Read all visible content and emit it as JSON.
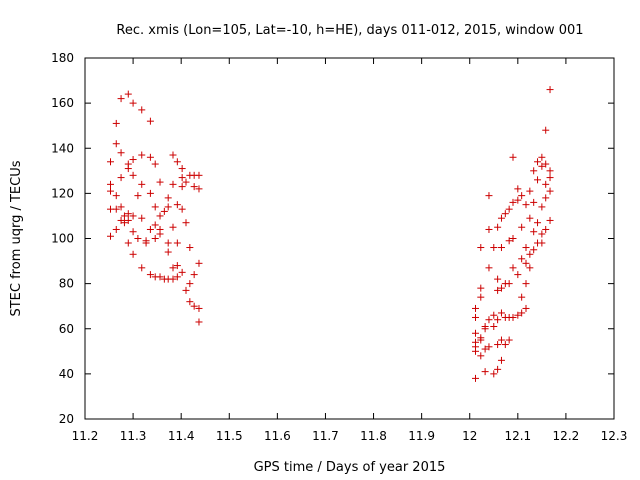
{
  "chart_data": {
    "type": "scatter",
    "title": "Rec. xmis (Lon=105, Lat=-10, h=HE), days 011-012, 2015, window 001",
    "xlabel": "GPS time / Days of year 2015",
    "ylabel": "STEC from uqrg / TECUs",
    "xlim": [
      11.2,
      12.3
    ],
    "ylim": [
      20,
      180
    ],
    "xticks": [
      "11.2",
      "11.3",
      "11.4",
      "11.5",
      "11.6",
      "11.7",
      "11.8",
      "11.9",
      "12",
      "12.1",
      "12.2",
      "12.3"
    ],
    "xtick_values": [
      11.2,
      11.3,
      11.4,
      11.5,
      11.6,
      11.7,
      11.8,
      11.9,
      12.0,
      12.1,
      12.2,
      12.3
    ],
    "yticks": [
      "20",
      "40",
      "60",
      "80",
      "100",
      "120",
      "140",
      "160",
      "180"
    ],
    "ytick_values": [
      20,
      40,
      60,
      80,
      100,
      120,
      140,
      160,
      180
    ],
    "marker": "+",
    "marker_color": "#cc0000",
    "grid": false,
    "series": [
      {
        "points": [
          [
            11.253,
            134
          ],
          [
            11.253,
            124
          ],
          [
            11.253,
            121
          ],
          [
            11.253,
            113
          ],
          [
            11.253,
            101
          ],
          [
            11.265,
            151
          ],
          [
            11.265,
            142
          ],
          [
            11.265,
            119
          ],
          [
            11.265,
            113
          ],
          [
            11.265,
            104
          ],
          [
            11.275,
            162
          ],
          [
            11.275,
            138
          ],
          [
            11.275,
            127
          ],
          [
            11.275,
            114
          ],
          [
            11.275,
            108
          ],
          [
            11.282,
            110
          ],
          [
            11.282,
            107
          ],
          [
            11.29,
            164
          ],
          [
            11.29,
            133
          ],
          [
            11.29,
            131
          ],
          [
            11.29,
            111
          ],
          [
            11.29,
            108
          ],
          [
            11.29,
            98
          ],
          [
            11.3,
            160
          ],
          [
            11.3,
            135
          ],
          [
            11.3,
            128
          ],
          [
            11.3,
            110
          ],
          [
            11.3,
            103
          ],
          [
            11.3,
            93
          ],
          [
            11.31,
            119
          ],
          [
            11.31,
            100
          ],
          [
            11.318,
            157
          ],
          [
            11.318,
            137
          ],
          [
            11.318,
            124
          ],
          [
            11.318,
            109
          ],
          [
            11.318,
            87
          ],
          [
            11.327,
            99
          ],
          [
            11.327,
            98
          ],
          [
            11.336,
            152
          ],
          [
            11.336,
            136
          ],
          [
            11.336,
            120
          ],
          [
            11.336,
            104
          ],
          [
            11.336,
            84
          ],
          [
            11.346,
            133
          ],
          [
            11.346,
            114
          ],
          [
            11.346,
            106
          ],
          [
            11.346,
            100
          ],
          [
            11.346,
            83
          ],
          [
            11.356,
            125
          ],
          [
            11.356,
            110
          ],
          [
            11.356,
            104
          ],
          [
            11.356,
            102
          ],
          [
            11.356,
            83
          ],
          [
            11.365,
            112
          ],
          [
            11.365,
            82
          ],
          [
            11.373,
            118
          ],
          [
            11.373,
            114
          ],
          [
            11.373,
            98
          ],
          [
            11.373,
            94
          ],
          [
            11.373,
            82
          ],
          [
            11.383,
            137
          ],
          [
            11.383,
            124
          ],
          [
            11.383,
            105
          ],
          [
            11.383,
            87
          ],
          [
            11.383,
            82
          ],
          [
            11.392,
            134
          ],
          [
            11.392,
            115
          ],
          [
            11.392,
            98
          ],
          [
            11.392,
            88
          ],
          [
            11.392,
            83
          ],
          [
            11.402,
            131
          ],
          [
            11.402,
            127
          ],
          [
            11.402,
            123
          ],
          [
            11.402,
            113
          ],
          [
            11.402,
            85
          ],
          [
            11.41,
            125
          ],
          [
            11.41,
            107
          ],
          [
            11.41,
            77
          ],
          [
            11.418,
            128
          ],
          [
            11.418,
            96
          ],
          [
            11.418,
            80
          ],
          [
            11.418,
            72
          ],
          [
            11.427,
            128
          ],
          [
            11.427,
            123
          ],
          [
            11.427,
            84
          ],
          [
            11.427,
            70
          ],
          [
            11.437,
            128
          ],
          [
            11.437,
            122
          ],
          [
            11.437,
            89
          ],
          [
            11.437,
            69
          ],
          [
            11.437,
            63
          ]
        ]
      },
      {
        "points": [
          [
            12.012,
            69
          ],
          [
            12.012,
            65
          ],
          [
            12.012,
            58
          ],
          [
            12.012,
            54
          ],
          [
            12.012,
            52
          ],
          [
            12.012,
            50
          ],
          [
            12.012,
            38
          ],
          [
            12.023,
            96
          ],
          [
            12.023,
            78
          ],
          [
            12.023,
            74
          ],
          [
            12.023,
            56
          ],
          [
            12.023,
            55
          ],
          [
            12.023,
            48
          ],
          [
            12.032,
            61
          ],
          [
            12.032,
            60
          ],
          [
            12.032,
            51
          ],
          [
            12.032,
            41
          ],
          [
            12.04,
            119
          ],
          [
            12.04,
            104
          ],
          [
            12.04,
            87
          ],
          [
            12.04,
            64
          ],
          [
            12.04,
            52
          ],
          [
            12.05,
            96
          ],
          [
            12.05,
            66
          ],
          [
            12.05,
            61
          ],
          [
            12.05,
            40
          ],
          [
            12.058,
            105
          ],
          [
            12.058,
            82
          ],
          [
            12.058,
            77
          ],
          [
            12.058,
            64
          ],
          [
            12.058,
            53
          ],
          [
            12.058,
            42
          ],
          [
            12.066,
            109
          ],
          [
            12.066,
            96
          ],
          [
            12.066,
            78
          ],
          [
            12.066,
            67
          ],
          [
            12.066,
            55
          ],
          [
            12.066,
            46
          ],
          [
            12.074,
            111
          ],
          [
            12.074,
            80
          ],
          [
            12.074,
            65
          ],
          [
            12.074,
            53
          ],
          [
            12.082,
            113
          ],
          [
            12.082,
            99
          ],
          [
            12.082,
            80
          ],
          [
            12.082,
            65
          ],
          [
            12.082,
            55
          ],
          [
            12.09,
            136
          ],
          [
            12.09,
            116
          ],
          [
            12.09,
            100
          ],
          [
            12.09,
            87
          ],
          [
            12.09,
            65
          ],
          [
            12.1,
            122
          ],
          [
            12.1,
            117
          ],
          [
            12.1,
            84
          ],
          [
            12.1,
            66
          ],
          [
            12.108,
            119
          ],
          [
            12.108,
            105
          ],
          [
            12.108,
            91
          ],
          [
            12.108,
            74
          ],
          [
            12.108,
            67
          ],
          [
            12.117,
            115
          ],
          [
            12.117,
            96
          ],
          [
            12.117,
            89
          ],
          [
            12.117,
            80
          ],
          [
            12.117,
            69
          ],
          [
            12.125,
            121
          ],
          [
            12.125,
            109
          ],
          [
            12.125,
            93
          ],
          [
            12.125,
            87
          ],
          [
            12.133,
            130
          ],
          [
            12.133,
            116
          ],
          [
            12.133,
            103
          ],
          [
            12.133,
            95
          ],
          [
            12.141,
            134
          ],
          [
            12.141,
            126
          ],
          [
            12.141,
            107
          ],
          [
            12.141,
            98
          ],
          [
            12.15,
            136
          ],
          [
            12.15,
            132
          ],
          [
            12.15,
            114
          ],
          [
            12.15,
            102
          ],
          [
            12.15,
            98
          ],
          [
            12.158,
            148
          ],
          [
            12.158,
            133
          ],
          [
            12.158,
            124
          ],
          [
            12.158,
            118
          ],
          [
            12.158,
            104
          ],
          [
            12.167,
            166
          ],
          [
            12.167,
            130
          ],
          [
            12.167,
            127
          ],
          [
            12.167,
            121
          ],
          [
            12.167,
            108
          ]
        ]
      }
    ]
  }
}
